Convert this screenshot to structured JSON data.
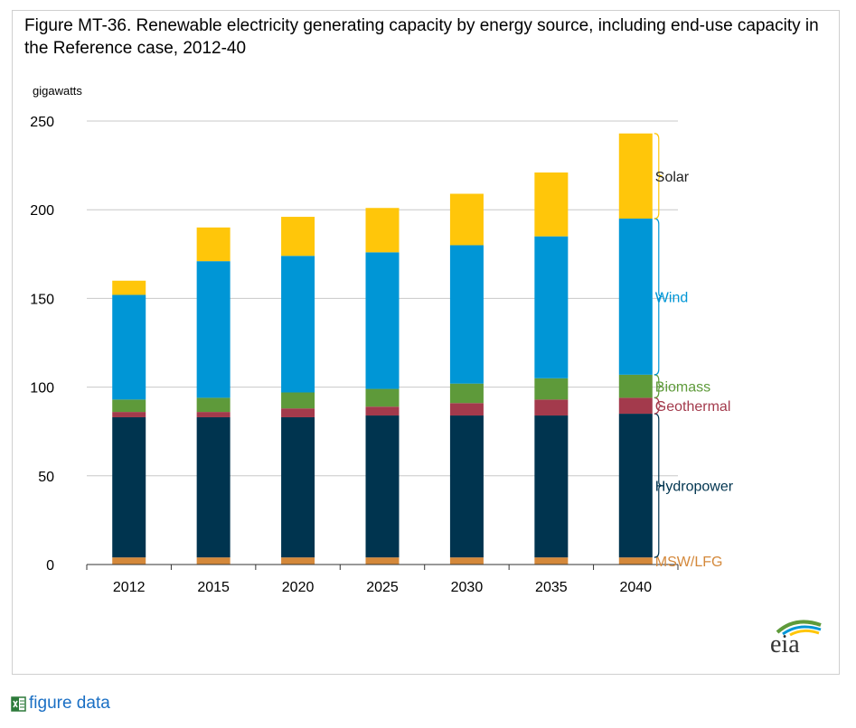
{
  "chart_data": {
    "type": "bar",
    "stacked": true,
    "title": "Figure MT-36. Renewable electricity generating capacity by energy source, including end-use capacity in the Reference case, 2012-40",
    "ylabel": "gigawatts",
    "ylim": [
      0,
      250
    ],
    "yticks": [
      0,
      50,
      100,
      150,
      200,
      250
    ],
    "grid": true,
    "legend_placement": "right, labels next to last bar",
    "categories": [
      "2012",
      "2015",
      "2020",
      "2025",
      "2030",
      "2035",
      "2040"
    ],
    "series": [
      {
        "name": "MSW/LFG",
        "color": "#d4883a",
        "values": [
          4,
          4,
          4,
          4,
          4,
          4,
          4
        ]
      },
      {
        "name": "Hydropower",
        "color": "#00344f",
        "values": [
          79,
          79,
          79,
          80,
          80,
          80,
          81
        ]
      },
      {
        "name": "Geothermal",
        "color": "#a33a4c",
        "values": [
          3,
          3,
          5,
          5,
          7,
          9,
          9
        ]
      },
      {
        "name": "Biomass",
        "color": "#5e9a3a",
        "values": [
          7,
          8,
          9,
          10,
          11,
          12,
          13
        ]
      },
      {
        "name": "Wind",
        "color": "#0096d6",
        "values": [
          59,
          77,
          77,
          77,
          78,
          80,
          88
        ]
      },
      {
        "name": "Solar",
        "color": "#ffc60a",
        "values": [
          8,
          19,
          22,
          25,
          29,
          36,
          48
        ]
      }
    ]
  },
  "logo": {
    "text": "eia"
  },
  "footer": {
    "link_label": "figure data"
  }
}
